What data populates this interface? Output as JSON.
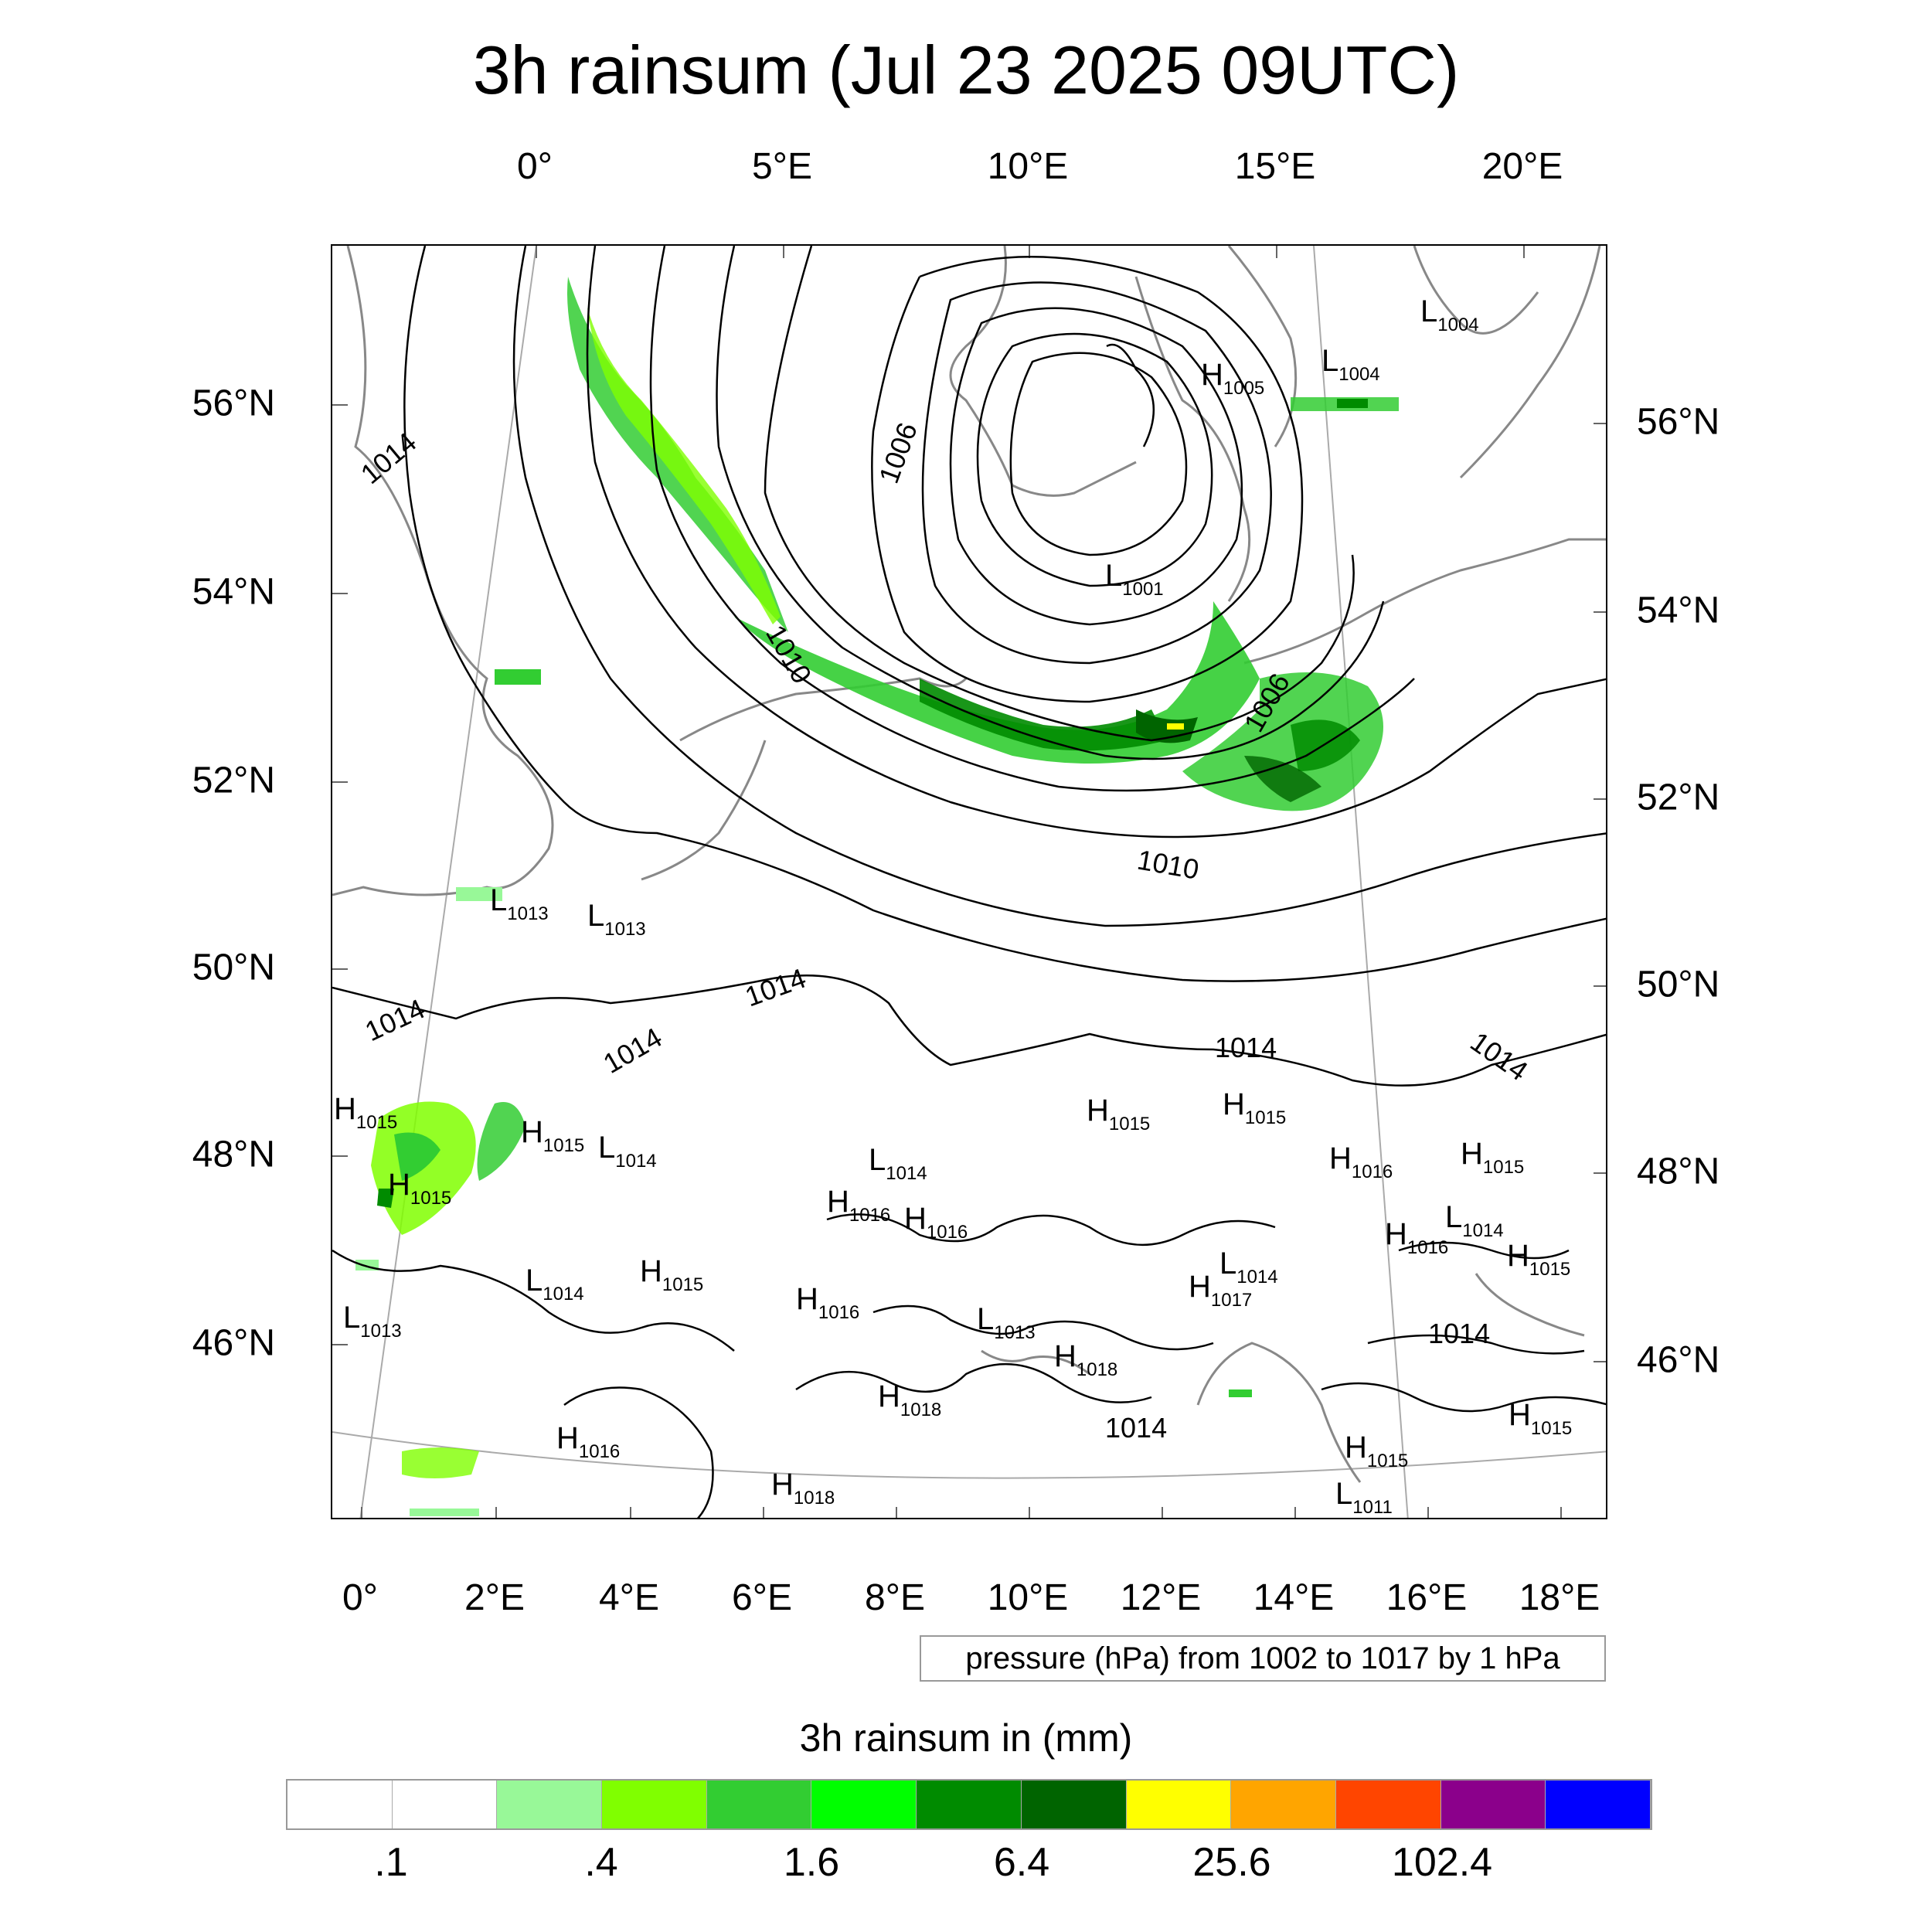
{
  "title": "3h rainsum (Jul 23 2025 09UTC)",
  "axes": {
    "top_lon_labels": [
      "0°",
      "5°E",
      "10°E",
      "15°E",
      "20°E"
    ],
    "bottom_lon_labels": [
      "0°",
      "2°E",
      "4°E",
      "6°E",
      "8°E",
      "10°E",
      "12°E",
      "14°E",
      "16°E",
      "18°E"
    ],
    "left_lat_labels": [
      "56°N",
      "54°N",
      "52°N",
      "50°N",
      "48°N",
      "46°N"
    ],
    "right_lat_labels": [
      "56°N",
      "54°N",
      "52°N",
      "50°N",
      "48°N",
      "46°N"
    ]
  },
  "pressure_note": "pressure (hPa) from 1002 to 1017 by 1 hPa",
  "colorbar": {
    "title": "3h rainsum in (mm)",
    "colors": [
      "#ffffff",
      "#ffffff",
      "#98f898",
      "#80ff00",
      "#32cd32",
      "#00ff00",
      "#008b00",
      "#006400",
      "#ffff00",
      "#ffa500",
      "#ff4500",
      "#8b008b",
      "#0000ff"
    ],
    "labels": [
      ".1",
      ".4",
      "1.6",
      "6.4",
      "25.6",
      "102.4"
    ]
  },
  "isobar_labels": [
    "1014",
    "1006",
    "1010",
    "1006",
    "1010",
    "1014",
    "1014",
    "1014",
    "1014",
    "1014",
    "1014",
    "1014"
  ],
  "pressure_centers": [
    {
      "type": "L",
      "value": "1004"
    },
    {
      "type": "H",
      "value": "1005"
    },
    {
      "type": "L",
      "value": "1004"
    },
    {
      "type": "L",
      "value": "1001"
    },
    {
      "type": "L",
      "value": "1013"
    },
    {
      "type": "L",
      "value": "1013"
    },
    {
      "type": "H",
      "value": "1015"
    },
    {
      "type": "H",
      "value": "1015"
    },
    {
      "type": "L",
      "value": "1014"
    },
    {
      "type": "H",
      "value": "1015"
    },
    {
      "type": "H",
      "value": "1015"
    },
    {
      "type": "H",
      "value": "1015"
    },
    {
      "type": "L",
      "value": "1014"
    },
    {
      "type": "H",
      "value": "1016"
    },
    {
      "type": "H",
      "value": "1015"
    },
    {
      "type": "H",
      "value": "1016"
    },
    {
      "type": "H",
      "value": "1016"
    },
    {
      "type": "L",
      "value": "1014"
    },
    {
      "type": "H",
      "value": "1016"
    },
    {
      "type": "H",
      "value": "1015"
    },
    {
      "type": "L",
      "value": "1014"
    },
    {
      "type": "L",
      "value": "1014"
    },
    {
      "type": "H",
      "value": "1017"
    },
    {
      "type": "H",
      "value": "1015"
    },
    {
      "type": "H",
      "value": "1016"
    },
    {
      "type": "L",
      "value": "1013"
    },
    {
      "type": "L",
      "value": "1013"
    },
    {
      "type": "H",
      "value": "1018"
    },
    {
      "type": "H",
      "value": "1018"
    },
    {
      "type": "H",
      "value": "1016"
    },
    {
      "type": "H",
      "value": "1018"
    },
    {
      "type": "H",
      "value": "1015"
    },
    {
      "type": "H",
      "value": "1015"
    },
    {
      "type": "L",
      "value": "1011"
    }
  ]
}
